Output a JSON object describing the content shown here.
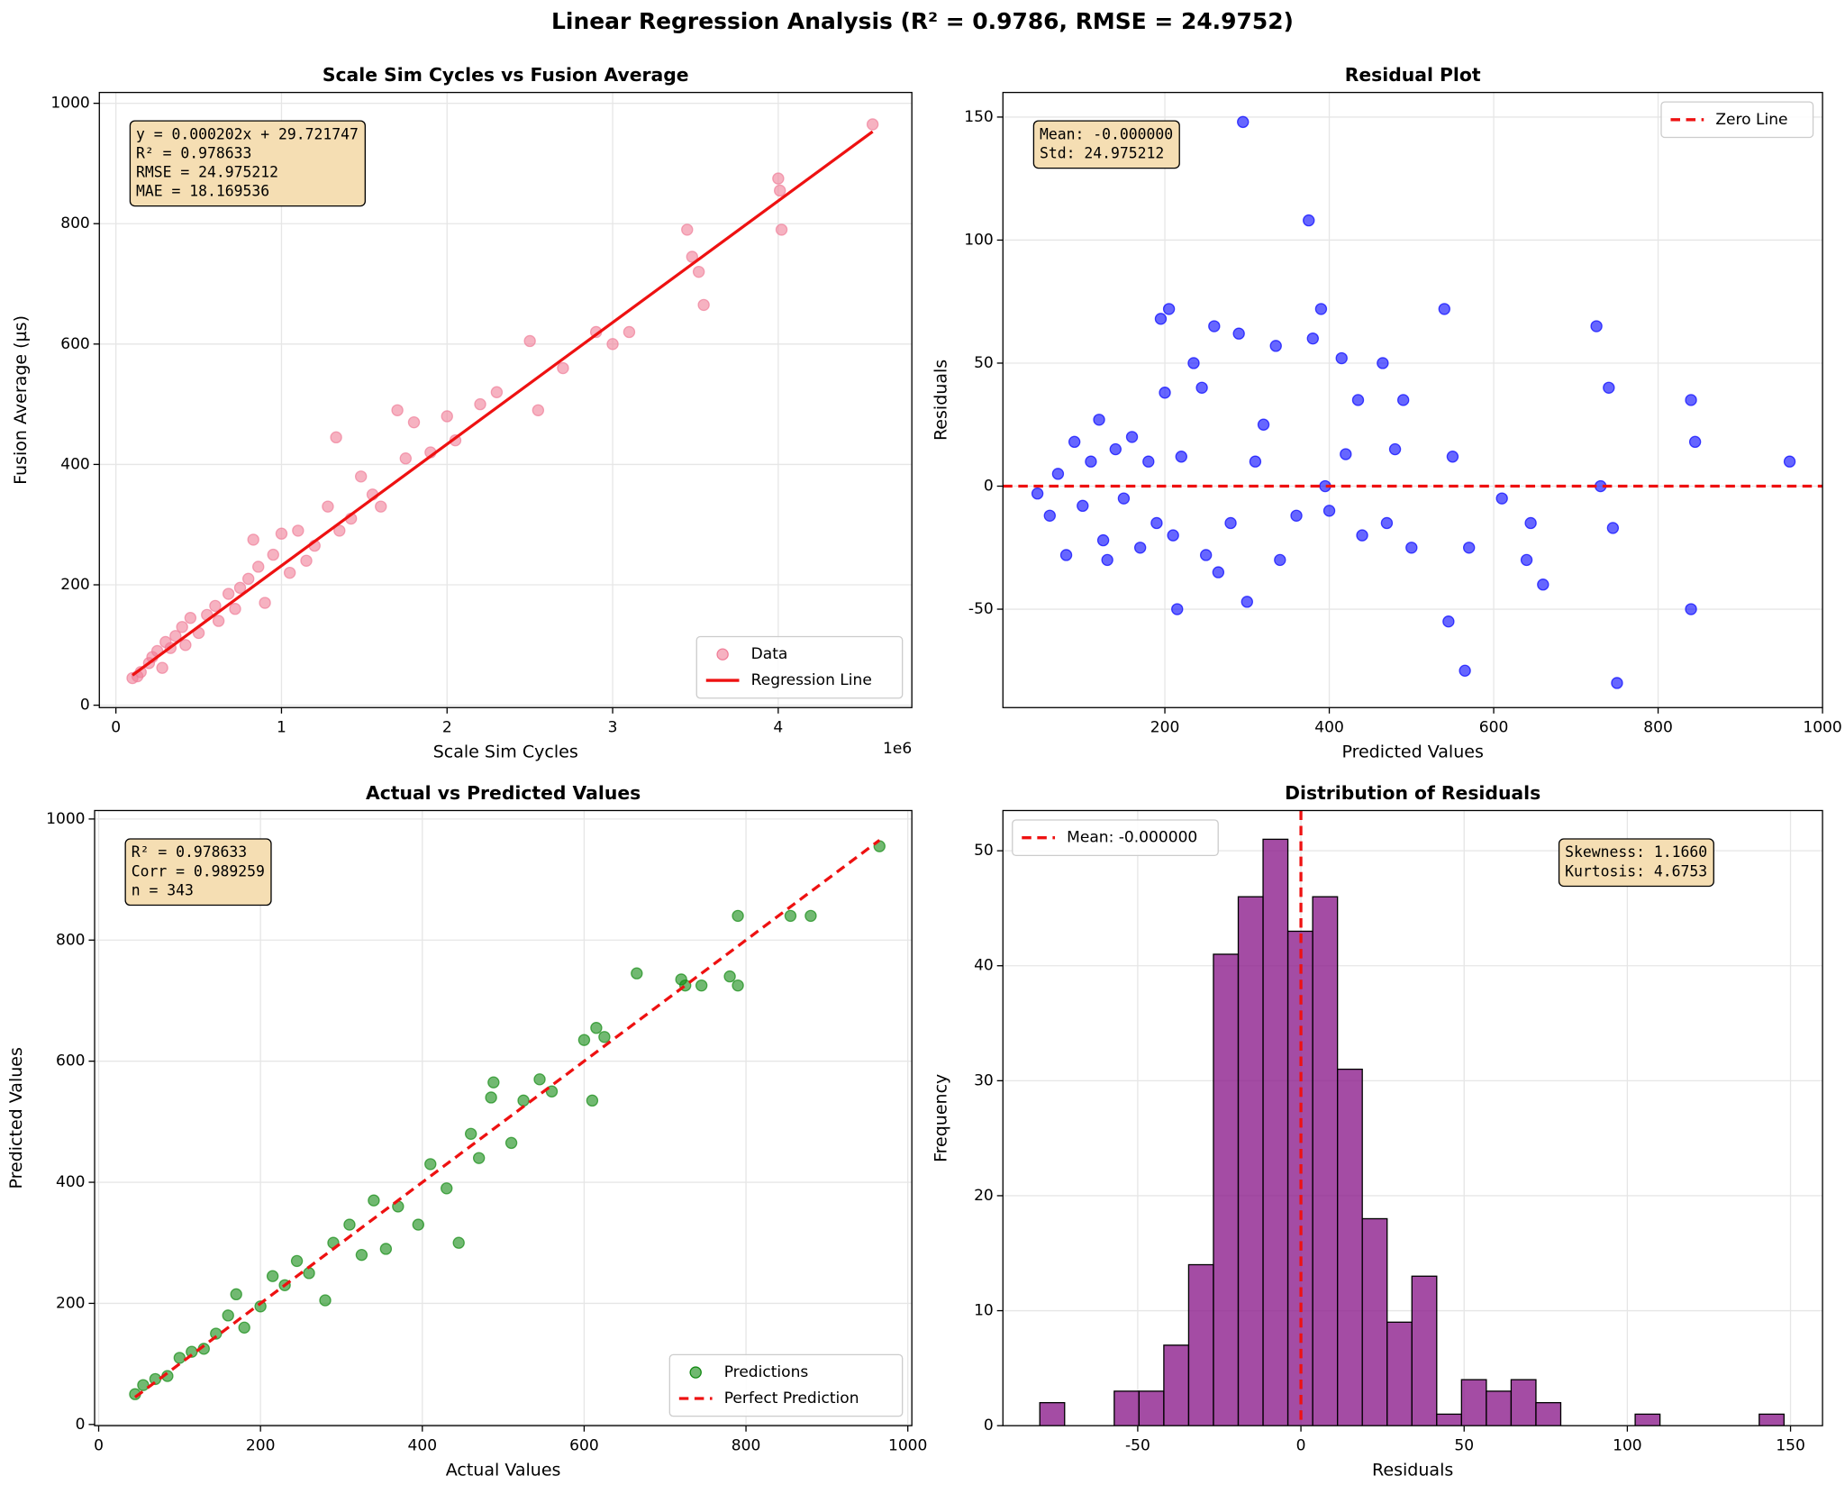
{
  "title": "Linear Regression Analysis (R² = 0.9786, RMSE = 24.9752)",
  "chart_data": [
    {
      "type": "scatter",
      "title": "Scale Sim Cycles vs Fusion Average",
      "xlabel": "Scale Sim Cycles",
      "ylabel": "Fusion Average (µs)",
      "x_offset_label": "1e6",
      "xlim": [
        -100000,
        4807000
      ],
      "ylim": [
        -4,
        1018
      ],
      "xticks": [
        0,
        {
          "value": 1000000,
          "label": "1"
        },
        {
          "value": 2000000,
          "label": "2"
        },
        {
          "value": 3000000,
          "label": "3"
        },
        {
          "value": 4000000,
          "label": "4"
        }
      ],
      "yticks": [
        0,
        200,
        400,
        600,
        800,
        1000
      ],
      "grid": true,
      "legend": "lower right",
      "annotation_corner": "upper left",
      "annotation": [
        "y = 0.000202x + 29.721747",
        "R² = 0.978633",
        "RMSE = 24.975212",
        "MAE = 18.169536"
      ],
      "series": [
        {
          "name": "Data",
          "color": "#f07e98",
          "x": [
            100000,
            130000,
            150000,
            200000,
            220000,
            250000,
            280000,
            300000,
            330000,
            360000,
            400000,
            420000,
            450000,
            500000,
            550000,
            600000,
            620000,
            680000,
            720000,
            750000,
            800000,
            830000,
            860000,
            900000,
            950000,
            1000000,
            1050000,
            1100000,
            1150000,
            1200000,
            1280000,
            1330000,
            1350000,
            1420000,
            1480000,
            1550000,
            1600000,
            1700000,
            1750000,
            1800000,
            1900000,
            2000000,
            2050000,
            2200000,
            2300000,
            2500000,
            2550000,
            2700000,
            2900000,
            3000000,
            3100000,
            3450000,
            3480000,
            3550000,
            3520000,
            4000000,
            4010000,
            4020000,
            4570000
          ],
          "y": [
            45,
            48,
            55,
            70,
            80,
            90,
            62,
            105,
            95,
            115,
            130,
            100,
            145,
            120,
            150,
            165,
            140,
            185,
            160,
            195,
            210,
            275,
            230,
            170,
            250,
            285,
            220,
            290,
            240,
            265,
            330,
            445,
            290,
            310,
            380,
            350,
            330,
            490,
            410,
            470,
            420,
            480,
            440,
            500,
            520,
            605,
            490,
            560,
            620,
            600,
            620,
            790,
            745,
            665,
            720,
            875,
            855,
            790,
            965
          ]
        }
      ],
      "lines": [
        {
          "name": "Regression Line",
          "color": "#ee1111",
          "dash": false,
          "x": [
            100000,
            4570000
          ],
          "y": [
            49.9,
            953.0
          ]
        }
      ]
    },
    {
      "type": "scatter",
      "title": "Residual Plot",
      "xlabel": "Predicted Values",
      "ylabel": "Residuals",
      "xlim": [
        3,
        1000
      ],
      "ylim": [
        -90,
        160
      ],
      "xticks": [
        200,
        400,
        600,
        800,
        1000
      ],
      "yticks": [
        -50,
        0,
        50,
        100,
        150
      ],
      "grid": true,
      "legend": "upper right",
      "annotation_corner": "upper left",
      "annotation": [
        "Mean: -0.000000",
        "Std: 24.975212"
      ],
      "series": [
        {
          "color": "#0000ff",
          "x": [
            45,
            60,
            70,
            80,
            90,
            100,
            110,
            120,
            125,
            130,
            140,
            150,
            160,
            170,
            180,
            190,
            195,
            205,
            200,
            210,
            215,
            220,
            235,
            245,
            250,
            260,
            265,
            280,
            290,
            295,
            300,
            310,
            320,
            335,
            340,
            360,
            375,
            380,
            390,
            395,
            400,
            415,
            420,
            435,
            440,
            465,
            470,
            480,
            490,
            500,
            540,
            545,
            550,
            565,
            570,
            610,
            640,
            645,
            660,
            725,
            730,
            740,
            745,
            750,
            840,
            840,
            845,
            960
          ],
          "y": [
            -3,
            -12,
            5,
            -28,
            18,
            -8,
            10,
            27,
            -22,
            -30,
            15,
            -5,
            20,
            -25,
            10,
            -15,
            68,
            72,
            38,
            -20,
            -50,
            12,
            50,
            40,
            -28,
            65,
            -35,
            -15,
            62,
            148,
            -47,
            10,
            25,
            57,
            -30,
            -12,
            108,
            60,
            72,
            0,
            -10,
            52,
            13,
            35,
            -20,
            50,
            -15,
            15,
            35,
            -25,
            72,
            -55,
            12,
            -75,
            -25,
            -5,
            -30,
            -15,
            -40,
            65,
            0,
            40,
            -17,
            -80,
            35,
            -50,
            18,
            10
          ]
        }
      ],
      "lines": [
        {
          "name": "Zero Line",
          "color": "#ee1111",
          "dash": true,
          "y": 0
        }
      ]
    },
    {
      "type": "scatter",
      "title": "Actual vs Predicted Values",
      "xlabel": "Actual Values",
      "ylabel": "Predicted Values",
      "xlim": [
        -5,
        1005
      ],
      "ylim": [
        -2,
        1014
      ],
      "xticks": [
        0,
        200,
        400,
        600,
        800,
        1000
      ],
      "yticks": [
        0,
        200,
        400,
        600,
        800,
        1000
      ],
      "grid": true,
      "legend": "lower right",
      "annotation_corner": "upper left",
      "annotation": [
        "R² = 0.978633",
        "Corr = 0.989259",
        "n = 343"
      ],
      "series": [
        {
          "name": "Predictions",
          "color": "#138a13",
          "x": [
            45,
            55,
            70,
            85,
            100,
            115,
            130,
            145,
            160,
            170,
            180,
            200,
            215,
            230,
            245,
            260,
            280,
            290,
            310,
            325,
            340,
            355,
            370,
            395,
            410,
            430,
            445,
            460,
            470,
            485,
            488,
            510,
            525,
            545,
            560,
            600,
            610,
            615,
            625,
            665,
            720,
            725,
            745,
            780,
            790,
            790,
            855,
            880,
            965
          ],
          "y": [
            50,
            65,
            75,
            80,
            110,
            120,
            125,
            150,
            180,
            215,
            160,
            195,
            245,
            230,
            270,
            250,
            205,
            300,
            330,
            280,
            370,
            290,
            360,
            330,
            430,
            390,
            300,
            480,
            440,
            540,
            565,
            465,
            535,
            570,
            550,
            635,
            535,
            655,
            640,
            745,
            735,
            725,
            725,
            740,
            840,
            725,
            840,
            840,
            955
          ]
        }
      ],
      "lines": [
        {
          "name": "Perfect Prediction",
          "color": "#ee1111",
          "dash": true,
          "x": [
            45,
            965
          ],
          "y": [
            45,
            965
          ]
        }
      ]
    },
    {
      "type": "histogram",
      "title": "Distribution of Residuals",
      "xlabel": "Residuals",
      "ylabel": "Frequency",
      "xlim": [
        -91.3,
        159.8
      ],
      "ylim": [
        0,
        53.5
      ],
      "xticks": [
        -50,
        0,
        50,
        100,
        150
      ],
      "yticks": [
        0,
        10,
        20,
        30,
        40,
        50
      ],
      "grid": true,
      "legend": "upper left",
      "annotation_corner": "upper right",
      "annotation": [
        "Skewness: 1.1660",
        "Kurtosis: 4.6753"
      ],
      "color": "#8b1a8b",
      "bins": [
        -80,
        -72.4,
        -64.8,
        -57.2,
        -49.6,
        -42,
        -34.4,
        -26.8,
        -19.2,
        -11.6,
        -4,
        3.6,
        11.2,
        18.8,
        26.4,
        34,
        41.6,
        49.2,
        56.8,
        64.4,
        72,
        79.6,
        87.2,
        94.8,
        102.4,
        110,
        117.6,
        125.2,
        132.8,
        140.4,
        148
      ],
      "counts": [
        2,
        0,
        0,
        3,
        3,
        7,
        14,
        41,
        46,
        51,
        43,
        46,
        31,
        18,
        9,
        13,
        1,
        4,
        3,
        4,
        2,
        0,
        0,
        0,
        1,
        0,
        0,
        0,
        0,
        1
      ],
      "lines": [
        {
          "name": "Mean: -0.000000",
          "color": "#ee1111",
          "dash": true,
          "x": 0
        }
      ]
    }
  ]
}
